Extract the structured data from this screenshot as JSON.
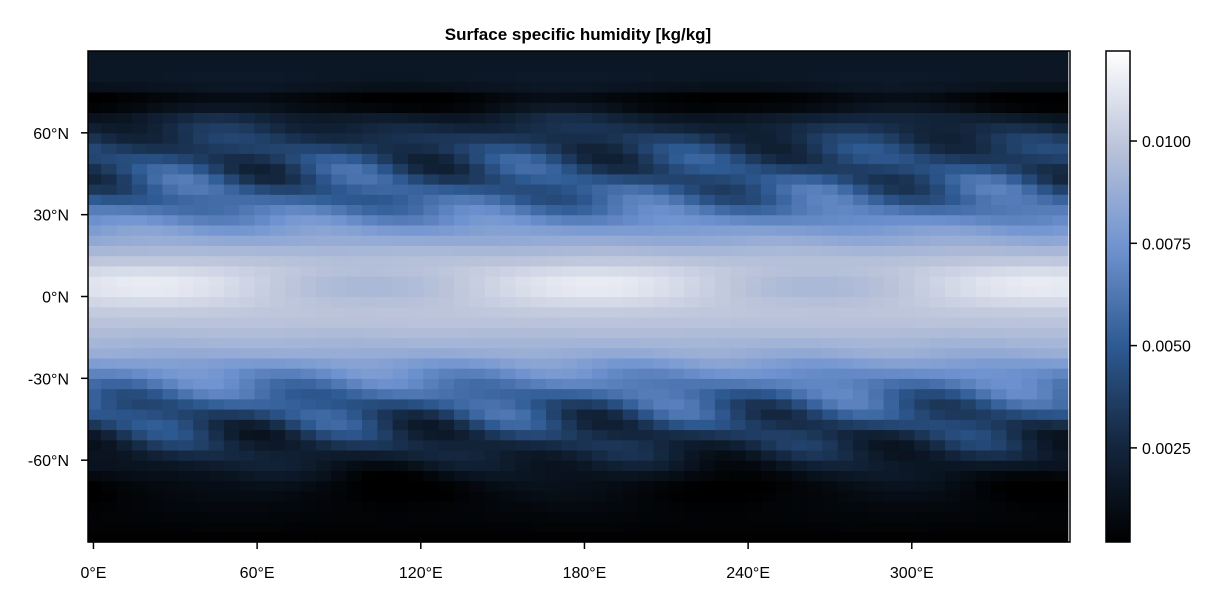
{
  "chart_data": {
    "type": "heatmap",
    "title": "Surface specific humidity [kg/kg]",
    "xlabel": "",
    "ylabel": "",
    "x_ticks": [
      {
        "value": 0,
        "label": "0°E"
      },
      {
        "value": 60,
        "label": "60°E"
      },
      {
        "value": 120,
        "label": "120°E"
      },
      {
        "value": 180,
        "label": "180°E"
      },
      {
        "value": 240,
        "label": "240°E"
      },
      {
        "value": 300,
        "label": "300°E"
      }
    ],
    "y_ticks": [
      {
        "value": 60,
        "label": "60°N"
      },
      {
        "value": 30,
        "label": "30°N"
      },
      {
        "value": 0,
        "label": "0°N"
      },
      {
        "value": -30,
        "label": "-30°N"
      },
      {
        "value": -60,
        "label": "-60°N"
      }
    ],
    "xlim": [
      -2,
      358
    ],
    "ylim": [
      -90,
      90
    ],
    "grid": false,
    "colorbar": {
      "range": [
        0.0002,
        0.0122
      ],
      "colormap": "black-blue-white",
      "colors": [
        "#000000",
        "#14273f",
        "#2e5a93",
        "#6f93d0",
        "#b9c2d9",
        "#ffffff"
      ],
      "ticks": [
        {
          "value": 0.0025,
          "label": "0.0025"
        },
        {
          "value": 0.005,
          "label": "0.0050"
        },
        {
          "value": 0.0075,
          "label": "0.0075"
        },
        {
          "value": 0.01,
          "label": "0.0100"
        }
      ]
    },
    "grid_resolution": {
      "lon_step": 5.625,
      "lat_step": 3.75
    },
    "latitude_profile": [
      {
        "lat": -90,
        "value": 0.0002
      },
      {
        "lat": -80,
        "value": 0.0006
      },
      {
        "lat": -70,
        "value": 0.0012
      },
      {
        "lat": -60,
        "value": 0.0022
      },
      {
        "lat": -50,
        "value": 0.0032
      },
      {
        "lat": -40,
        "value": 0.0048
      },
      {
        "lat": -30,
        "value": 0.0068
      },
      {
        "lat": -20,
        "value": 0.0088
      },
      {
        "lat": -10,
        "value": 0.0098
      },
      {
        "lat": 0,
        "value": 0.0103
      },
      {
        "lat": 8,
        "value": 0.0104
      },
      {
        "lat": 15,
        "value": 0.0096
      },
      {
        "lat": 25,
        "value": 0.0078
      },
      {
        "lat": 35,
        "value": 0.0055
      },
      {
        "lat": 45,
        "value": 0.0042
      },
      {
        "lat": 55,
        "value": 0.0036
      },
      {
        "lat": 65,
        "value": 0.0028
      },
      {
        "lat": 72,
        "value": 0.0008
      },
      {
        "lat": 78,
        "value": 0.0018
      },
      {
        "lat": 90,
        "value": 0.0015
      }
    ]
  }
}
